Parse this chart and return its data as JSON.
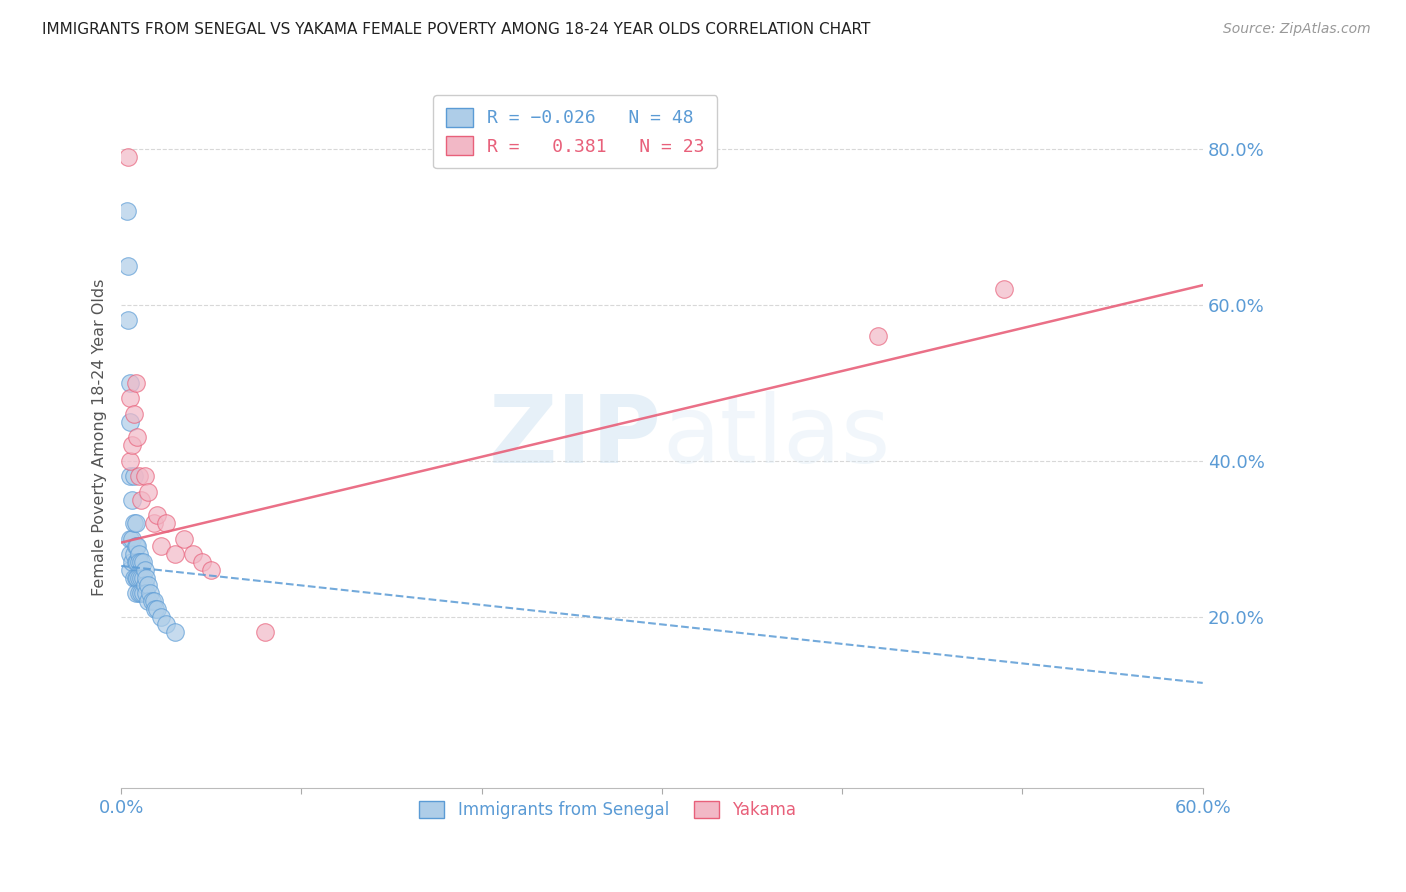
{
  "title": "IMMIGRANTS FROM SENEGAL VS YAKAMA FEMALE POVERTY AMONG 18-24 YEAR OLDS CORRELATION CHART",
  "source": "Source: ZipAtlas.com",
  "ylabel": "Female Poverty Among 18-24 Year Olds",
  "xlim": [
    0.0,
    0.6
  ],
  "ylim": [
    -0.02,
    0.88
  ],
  "yticks": [
    0.2,
    0.4,
    0.6,
    0.8
  ],
  "ytick_labels": [
    "20.0%",
    "40.0%",
    "60.0%",
    "80.0%"
  ],
  "xticks": [
    0.0,
    0.1,
    0.2,
    0.3,
    0.4,
    0.5,
    0.6
  ],
  "xtick_labels": [
    "0.0%",
    "",
    "",
    "",
    "",
    "",
    "60.0%"
  ],
  "blue_R": -0.026,
  "blue_N": 48,
  "pink_R": 0.381,
  "pink_N": 23,
  "blue_color": "#aecde8",
  "pink_color": "#f2b8c6",
  "blue_line_color": "#5b9bd5",
  "pink_line_color": "#e8607a",
  "blue_scatter_x": [
    0.003,
    0.004,
    0.004,
    0.005,
    0.005,
    0.005,
    0.005,
    0.005,
    0.005,
    0.006,
    0.006,
    0.006,
    0.007,
    0.007,
    0.007,
    0.007,
    0.008,
    0.008,
    0.008,
    0.008,
    0.008,
    0.009,
    0.009,
    0.009,
    0.01,
    0.01,
    0.01,
    0.01,
    0.011,
    0.011,
    0.011,
    0.012,
    0.012,
    0.012,
    0.013,
    0.013,
    0.014,
    0.014,
    0.015,
    0.015,
    0.016,
    0.017,
    0.018,
    0.019,
    0.02,
    0.022,
    0.025,
    0.03
  ],
  "blue_scatter_y": [
    0.72,
    0.65,
    0.58,
    0.5,
    0.45,
    0.38,
    0.3,
    0.28,
    0.26,
    0.35,
    0.3,
    0.27,
    0.38,
    0.32,
    0.28,
    0.25,
    0.32,
    0.29,
    0.27,
    0.25,
    0.23,
    0.29,
    0.27,
    0.25,
    0.28,
    0.27,
    0.25,
    0.23,
    0.27,
    0.25,
    0.23,
    0.27,
    0.25,
    0.23,
    0.26,
    0.24,
    0.25,
    0.23,
    0.24,
    0.22,
    0.23,
    0.22,
    0.22,
    0.21,
    0.21,
    0.2,
    0.19,
    0.18
  ],
  "pink_scatter_x": [
    0.004,
    0.005,
    0.005,
    0.006,
    0.007,
    0.008,
    0.009,
    0.01,
    0.011,
    0.013,
    0.015,
    0.018,
    0.02,
    0.022,
    0.025,
    0.03,
    0.035,
    0.04,
    0.045,
    0.05,
    0.08,
    0.42,
    0.49
  ],
  "pink_scatter_y": [
    0.79,
    0.48,
    0.4,
    0.42,
    0.46,
    0.5,
    0.43,
    0.38,
    0.35,
    0.38,
    0.36,
    0.32,
    0.33,
    0.29,
    0.32,
    0.28,
    0.3,
    0.28,
    0.27,
    0.26,
    0.18,
    0.56,
    0.62
  ],
  "blue_trend_x": [
    0.0,
    0.6
  ],
  "blue_trend_y": [
    0.265,
    0.115
  ],
  "pink_trend_x": [
    0.0,
    0.6
  ],
  "pink_trend_y": [
    0.295,
    0.625
  ]
}
